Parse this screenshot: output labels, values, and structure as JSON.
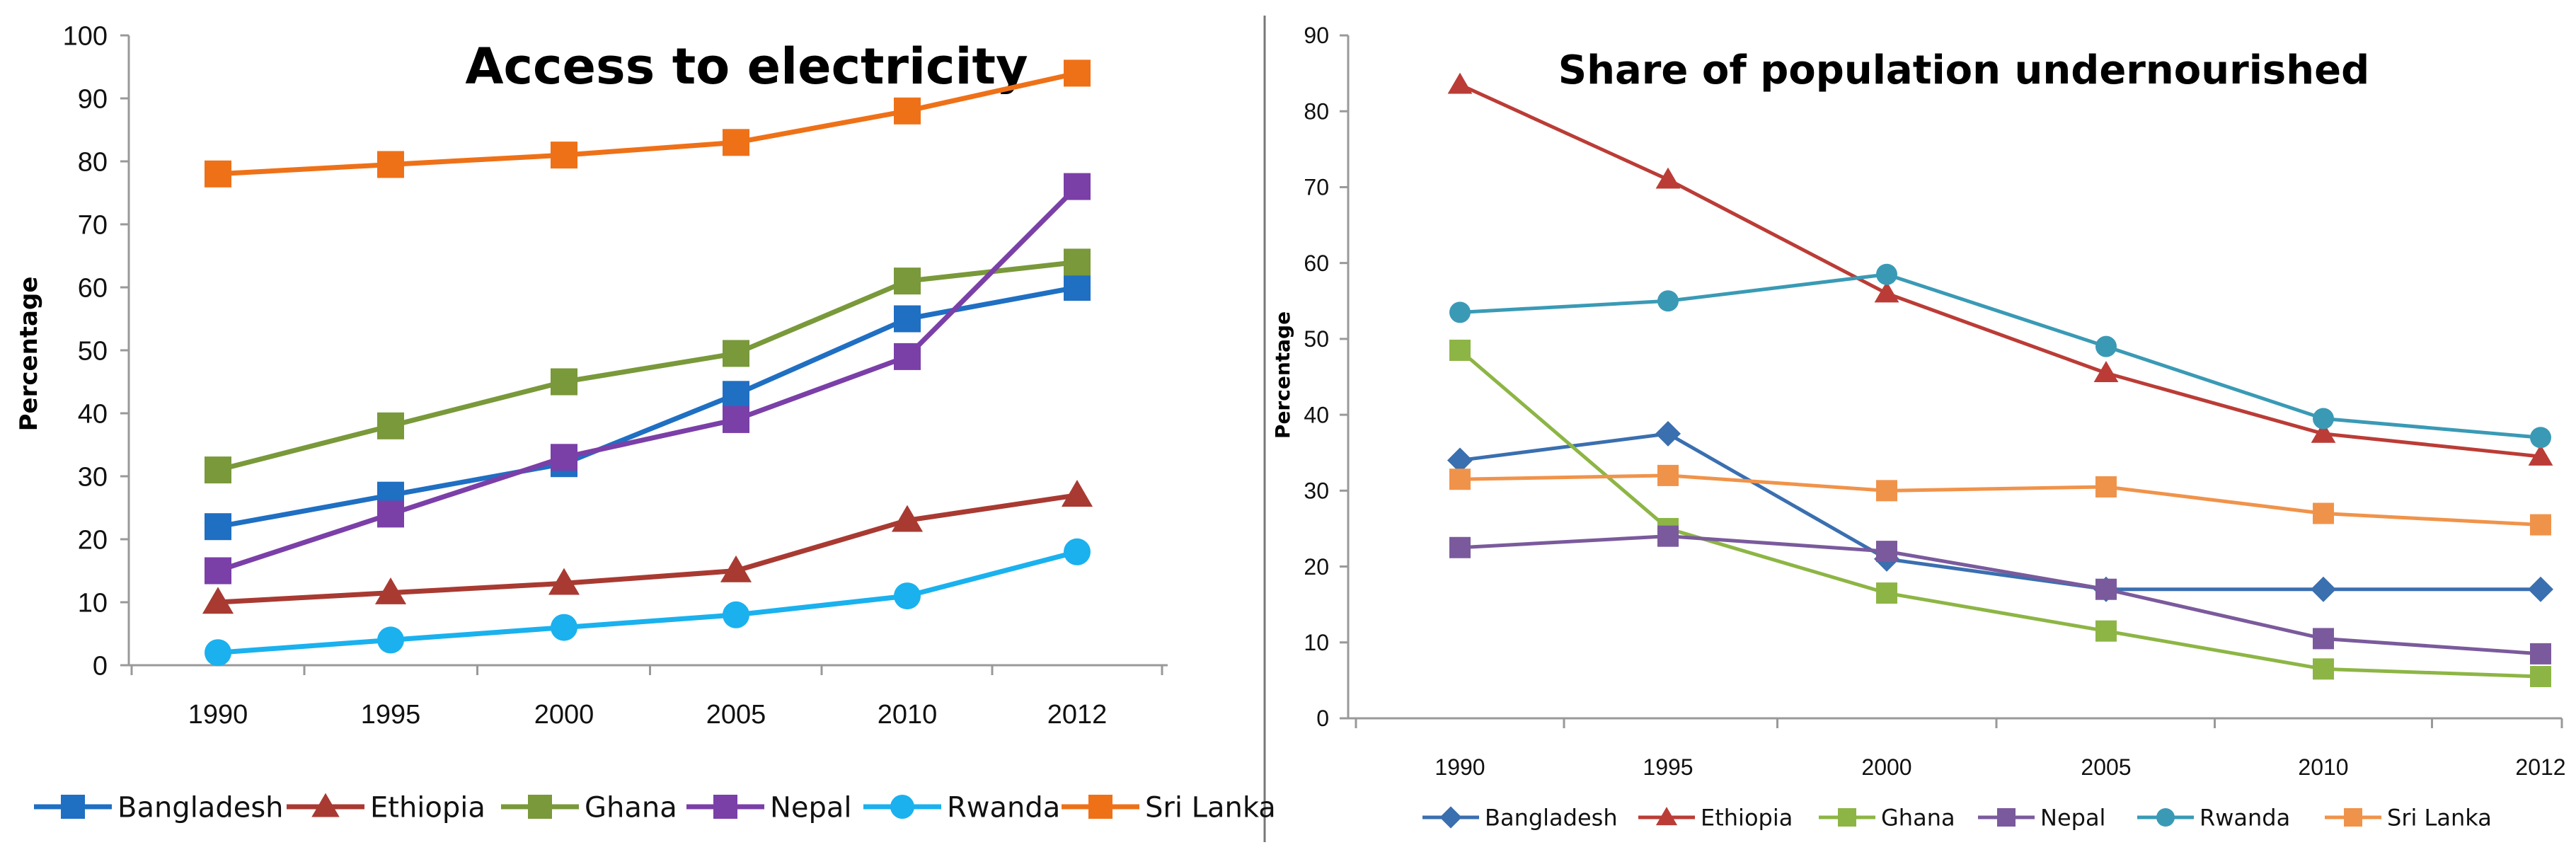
{
  "chart_data": [
    {
      "type": "line",
      "title": "Access to electricity",
      "xlabel": "",
      "ylabel": "Percentage",
      "ylim": [
        0,
        100
      ],
      "yticks": [
        0,
        10,
        20,
        30,
        40,
        50,
        60,
        70,
        80,
        90,
        100
      ],
      "categories": [
        "1990",
        "1995",
        "2000",
        "2005",
        "2010",
        "2012"
      ],
      "legend_position": "bottom",
      "series": [
        {
          "name": "Bangladesh",
          "color": "#1f6fc3",
          "marker": "square",
          "values": [
            22,
            27,
            32,
            43,
            55,
            60
          ]
        },
        {
          "name": "Ethiopia",
          "color": "#a83a32",
          "marker": "triangle",
          "values": [
            10,
            11.5,
            13,
            15,
            23,
            27
          ]
        },
        {
          "name": "Ghana",
          "color": "#79993a",
          "marker": "square",
          "values": [
            31,
            38,
            45,
            49.5,
            61,
            64
          ]
        },
        {
          "name": "Nepal",
          "color": "#7b3fa8",
          "marker": "square",
          "values": [
            15,
            24,
            33,
            39,
            49,
            76
          ]
        },
        {
          "name": "Rwanda",
          "color": "#1ab1ee",
          "marker": "circle",
          "values": [
            2,
            4,
            6,
            8,
            11,
            18
          ]
        },
        {
          "name": "Sri Lanka",
          "color": "#ee7118",
          "marker": "square",
          "values": [
            78,
            79.5,
            81,
            83,
            88,
            94
          ]
        }
      ]
    },
    {
      "type": "line",
      "title": "Share of population undernourished",
      "xlabel": "",
      "ylabel": "Percentage",
      "ylim": [
        0,
        90
      ],
      "yticks": [
        0,
        10,
        20,
        30,
        40,
        50,
        60,
        70,
        80,
        90
      ],
      "categories": [
        "1990",
        "1995",
        "2000",
        "2005",
        "2010",
        "2012"
      ],
      "legend_position": "bottom",
      "series": [
        {
          "name": "Bangladesh",
          "color": "#3a6fb0",
          "marker": "diamond",
          "values": [
            34,
            37.5,
            21,
            17,
            17,
            17
          ]
        },
        {
          "name": "Ethiopia",
          "color": "#bb3c36",
          "marker": "triangle",
          "values": [
            83.5,
            71,
            56,
            45.5,
            37.5,
            34.5
          ]
        },
        {
          "name": "Ghana",
          "color": "#8db545",
          "marker": "square",
          "values": [
            48.5,
            25,
            16.5,
            11.5,
            6.5,
            5.5
          ]
        },
        {
          "name": "Nepal",
          "color": "#7a5a9c",
          "marker": "square",
          "values": [
            22.5,
            24,
            22,
            17,
            10.5,
            8.5
          ]
        },
        {
          "name": "Rwanda",
          "color": "#3a9ab5",
          "marker": "circle",
          "values": [
            53.5,
            55,
            58.5,
            49,
            39.5,
            37
          ]
        },
        {
          "name": "Sri Lanka",
          "color": "#f0934a",
          "marker": "square",
          "values": [
            31.5,
            32,
            30,
            30.5,
            27,
            25.5
          ]
        }
      ]
    }
  ]
}
